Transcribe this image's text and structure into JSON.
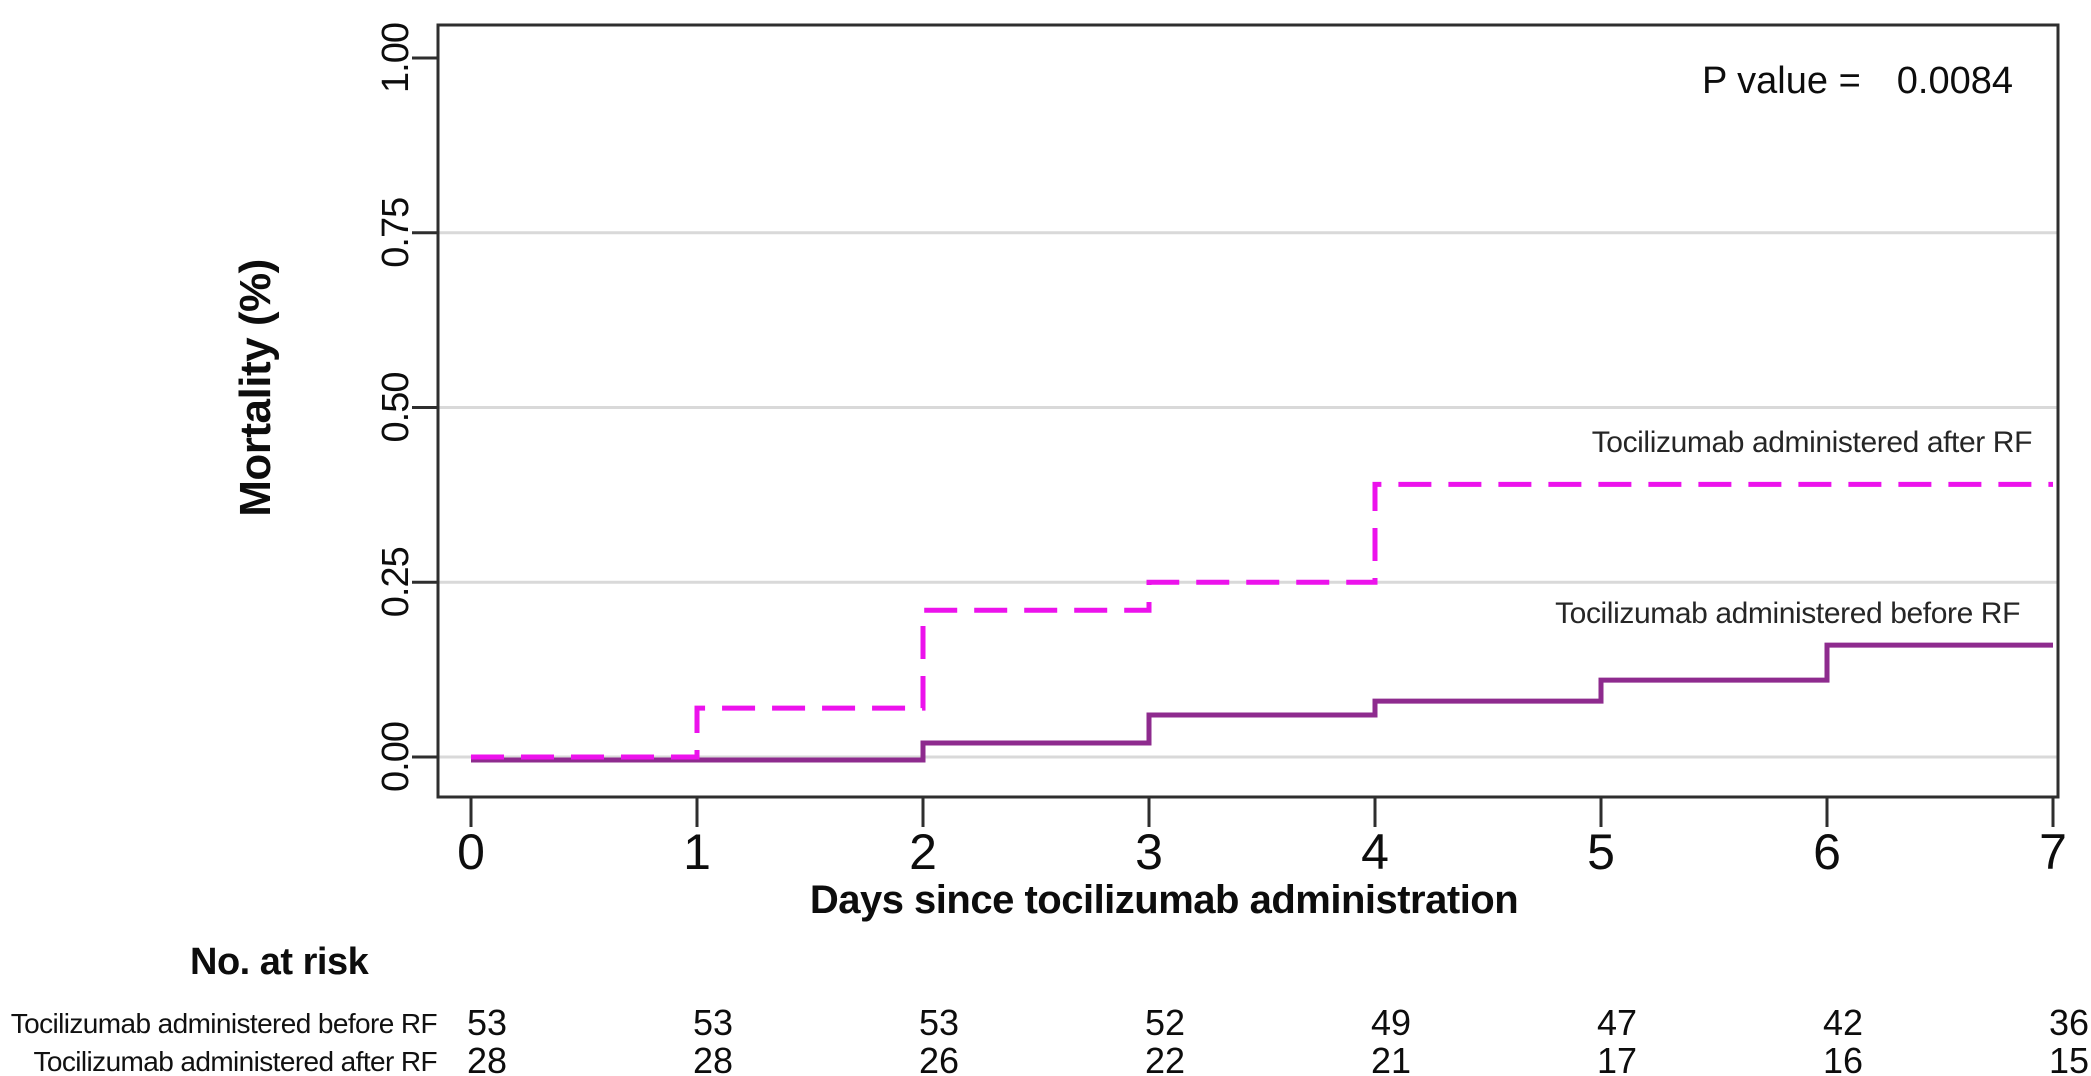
{
  "chart_data": {
    "type": "line",
    "subtype": "kaplan_meier_cumulative_incidence_step",
    "title": "",
    "xlabel": "Days since tocilizumab administration",
    "ylabel": "Mortality (%)",
    "p_label": "P value =",
    "p_value": "0.0084",
    "xlim": [
      0,
      7
    ],
    "ylim": [
      0,
      1
    ],
    "xticks": [
      "0",
      "1",
      "2",
      "3",
      "4",
      "5",
      "6",
      "7"
    ],
    "yticks": [
      {
        "value": 0.0,
        "label": "0.00"
      },
      {
        "value": 0.25,
        "label": "0.25"
      },
      {
        "value": 0.5,
        "label": "0.50"
      },
      {
        "value": 0.75,
        "label": "0.75"
      },
      {
        "value": 1.0,
        "label": "1.00"
      }
    ],
    "grid": true,
    "gridline_values": [
      0,
      0.25,
      0.5,
      0.75
    ],
    "legend_position": "annotations at right ends of curves",
    "series": [
      {
        "name": "Tocilizumab administered after RF",
        "color": "#EC12EC",
        "line_style": "dashed",
        "steps": [
          [
            0,
            0
          ],
          [
            1,
            0.07
          ],
          [
            2,
            0.21
          ],
          [
            3,
            0.25
          ],
          [
            4,
            0.39
          ],
          [
            7,
            0.39
          ]
        ]
      },
      {
        "name": "Tocilizumab administered before RF",
        "color": "#8E2B8E",
        "line_style": "solid",
        "steps": [
          [
            0,
            0
          ],
          [
            2,
            0.02
          ],
          [
            3,
            0.06
          ],
          [
            4,
            0.08
          ],
          [
            5,
            0.11
          ],
          [
            6,
            0.16
          ],
          [
            7,
            0.16
          ]
        ]
      }
    ],
    "risk_table": {
      "title": "No. at risk",
      "days": [
        0,
        1,
        2,
        3,
        4,
        5,
        6,
        7
      ],
      "rows": [
        {
          "label": "Tocilizumab administered before RF",
          "values": [
            53,
            53,
            53,
            52,
            49,
            47,
            42,
            36
          ]
        },
        {
          "label": "Tocilizumab administered after RF",
          "values": [
            28,
            28,
            26,
            22,
            21,
            17,
            16,
            15
          ]
        }
      ]
    }
  }
}
